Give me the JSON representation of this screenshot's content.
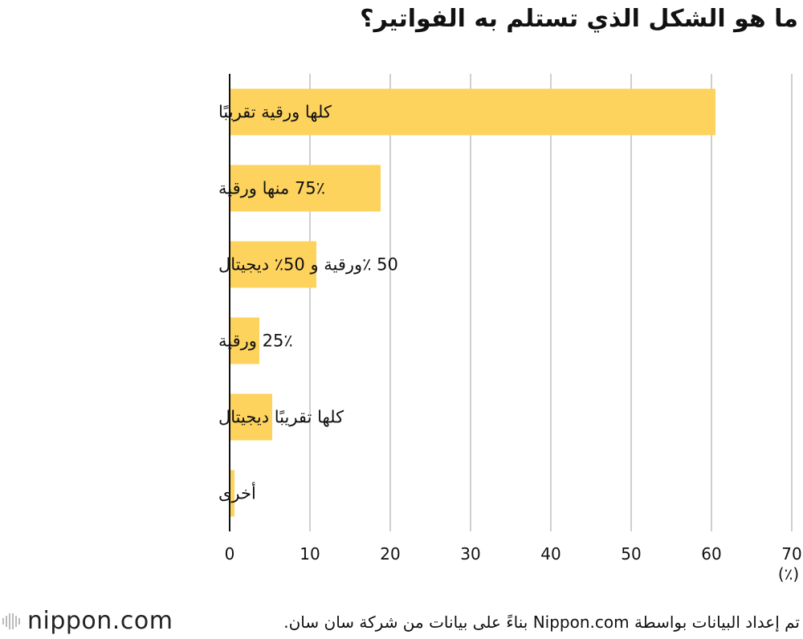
{
  "title": "ما هو الشكل الذي تستلم به الفواتير؟",
  "source": "تم إعداد البيانات بواسطة Nippon.com بناءً على بيانات من شركة سان سان.",
  "logo": {
    "text": "nippon.com"
  },
  "colors": {
    "bar": "#FDD35E",
    "grid": "#CFCFCF",
    "axis": "#111111",
    "text": "#111111"
  },
  "chart_data": {
    "type": "bar",
    "orientation": "horizontal",
    "title": "ما هو الشكل الذي تستلم به الفواتير؟",
    "categories": [
      "كلها ورقية تقريبًا",
      "75٪ منها ورقية",
      "50 ٪ورقية و 50٪ ديجيتال",
      "25٪ ورقية",
      "كلها تقريبًا ديجيتال",
      "أخرى"
    ],
    "values": [
      60.5,
      18.8,
      10.8,
      3.7,
      5.3,
      0.6
    ],
    "xlabel": "(٪)",
    "ylabel": "",
    "xlim": [
      0,
      70
    ],
    "xticks": [
      0,
      10,
      20,
      30,
      40,
      50,
      60,
      70
    ],
    "grid": true,
    "legend": "none"
  }
}
